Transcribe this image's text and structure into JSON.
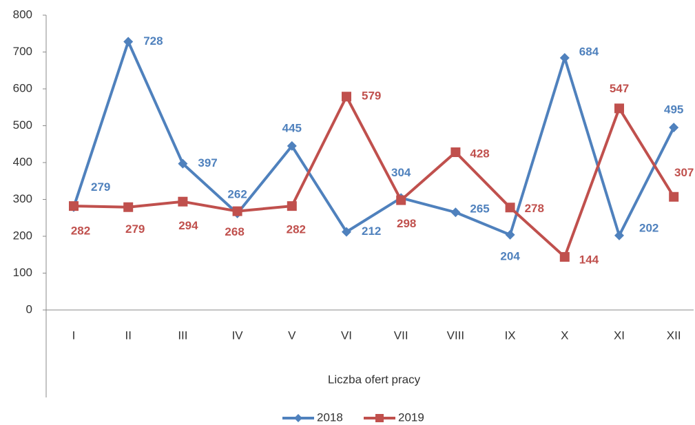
{
  "chart_data": {
    "type": "line",
    "xlabel": "Liczba ofert pracy",
    "categories": [
      "I",
      "II",
      "III",
      "IV",
      "V",
      "VI",
      "VII",
      "VIII",
      "IX",
      "X",
      "XI",
      "XII"
    ],
    "series": [
      {
        "name": "2018",
        "color": "#4f81bd",
        "marker": "diamond",
        "values": [
          279,
          728,
          397,
          262,
          445,
          212,
          304,
          265,
          204,
          684,
          202,
          495
        ]
      },
      {
        "name": "2019",
        "color": "#c0504d",
        "marker": "square",
        "values": [
          282,
          279,
          294,
          268,
          282,
          579,
          298,
          428,
          278,
          144,
          547,
          307
        ]
      }
    ],
    "ylim": [
      0,
      800
    ],
    "yticks": [
      0,
      100,
      200,
      300,
      400,
      500,
      600,
      700,
      800
    ],
    "grid": false,
    "legend": "bottom"
  }
}
